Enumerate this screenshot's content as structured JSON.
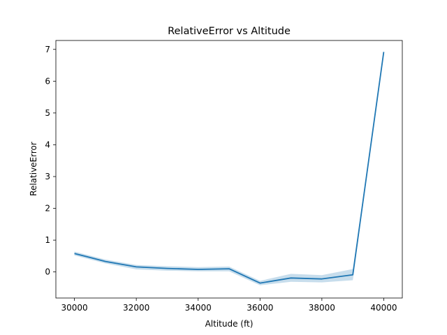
{
  "chart_data": {
    "type": "line",
    "title": "RelativeError vs Altitude",
    "xlabel": "Altitude (ft)",
    "ylabel": "RelativeError",
    "xlim": [
      29400,
      40600
    ],
    "ylim": [
      -0.82,
      7.28
    ],
    "xticks": [
      30000,
      32000,
      34000,
      36000,
      38000,
      40000
    ],
    "yticks": [
      0,
      1,
      2,
      3,
      4,
      5,
      6,
      7
    ],
    "grid": false,
    "series": [
      {
        "color": "#1f77b4",
        "band_color": "#1f77b4",
        "x": [
          30000,
          31000,
          32000,
          33000,
          34000,
          35000,
          36000,
          37000,
          38000,
          39000,
          40000
        ],
        "y": [
          0.58,
          0.33,
          0.16,
          0.11,
          0.08,
          0.1,
          -0.35,
          -0.19,
          -0.22,
          -0.09,
          6.92
        ],
        "lower": [
          0.52,
          0.27,
          0.08,
          0.04,
          0.02,
          0.02,
          -0.42,
          -0.31,
          -0.33,
          -0.26,
          6.92
        ],
        "upper": [
          0.64,
          0.39,
          0.22,
          0.18,
          0.15,
          0.17,
          -0.28,
          -0.06,
          -0.1,
          0.09,
          6.92
        ]
      }
    ]
  }
}
